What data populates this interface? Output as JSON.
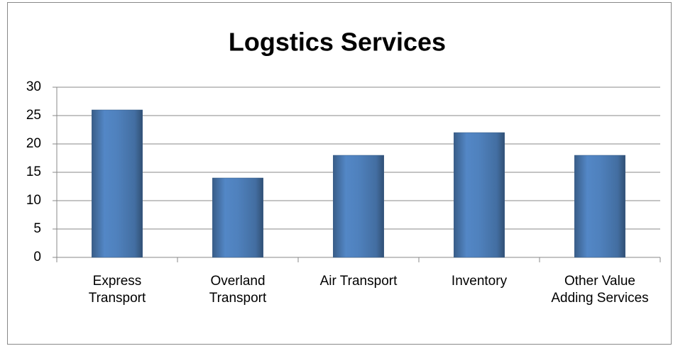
{
  "chart_data": {
    "type": "bar",
    "title": "Logstics Services",
    "categories": [
      "Express Transport",
      "Overland Transport",
      "Air Transport",
      "Inventory",
      "Other Value Adding Services"
    ],
    "values": [
      26,
      14,
      18,
      22,
      18
    ],
    "color": "#4f81bd",
    "ylim": [
      0,
      30
    ],
    "yticks": [
      0,
      5,
      10,
      15,
      20,
      25,
      30
    ],
    "grid": true
  }
}
